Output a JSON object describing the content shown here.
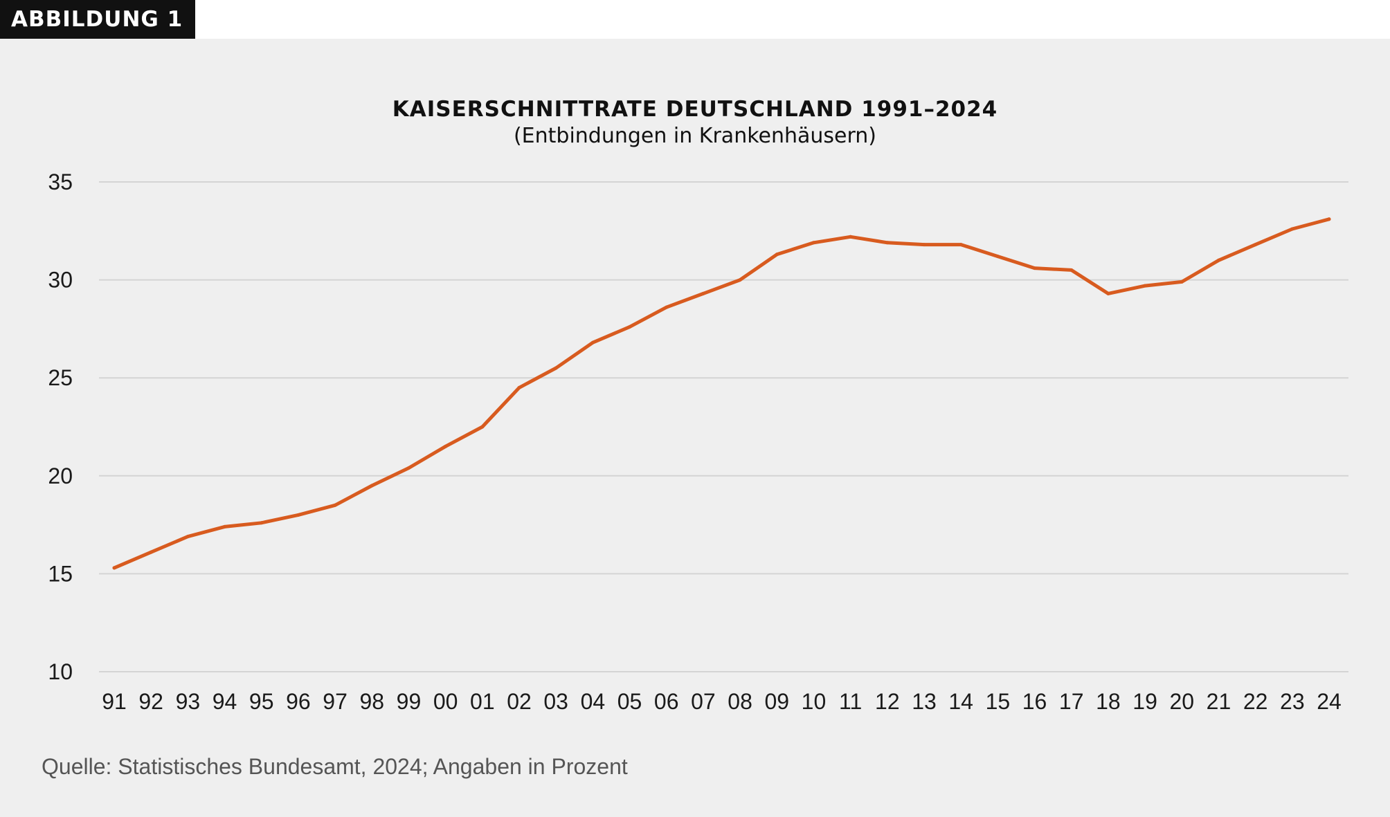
{
  "figure_label": "ABBILDUNG 1",
  "source_note": "Quelle: Statistisches Bundesamt, 2024; Angaben in Prozent",
  "chart_data": {
    "type": "line",
    "title": "KAISERSCHNITTRATE DEUTSCHLAND 1991–2024",
    "subtitle": "(Entbindungen in Krankenhäusern)",
    "xlabel": "",
    "ylabel": "",
    "categories": [
      "91",
      "92",
      "93",
      "94",
      "95",
      "96",
      "97",
      "98",
      "99",
      "00",
      "01",
      "02",
      "03",
      "04",
      "05",
      "06",
      "07",
      "08",
      "09",
      "10",
      "11",
      "12",
      "13",
      "14",
      "15",
      "16",
      "17",
      "18",
      "19",
      "20",
      "21",
      "22",
      "23",
      "24"
    ],
    "series": [
      {
        "values": [
          15.3,
          16.1,
          16.9,
          17.4,
          17.6,
          18.0,
          18.5,
          19.5,
          20.4,
          21.5,
          22.5,
          24.5,
          25.5,
          26.8,
          27.6,
          28.6,
          29.3,
          30.0,
          31.3,
          31.9,
          32.2,
          31.9,
          31.8,
          31.8,
          31.2,
          30.6,
          30.5,
          29.3,
          29.7,
          29.9,
          31.0,
          31.8,
          32.6,
          33.1
        ]
      }
    ],
    "ylim": [
      10,
      35
    ],
    "yticks": [
      "10",
      "15",
      "20",
      "25",
      "30",
      "35"
    ],
    "ytick_values": [
      10,
      15,
      20,
      25,
      30,
      35
    ],
    "grid": true,
    "legend": "none",
    "line_color": "#d85b1f",
    "grid_color": "#d4d4d4"
  }
}
